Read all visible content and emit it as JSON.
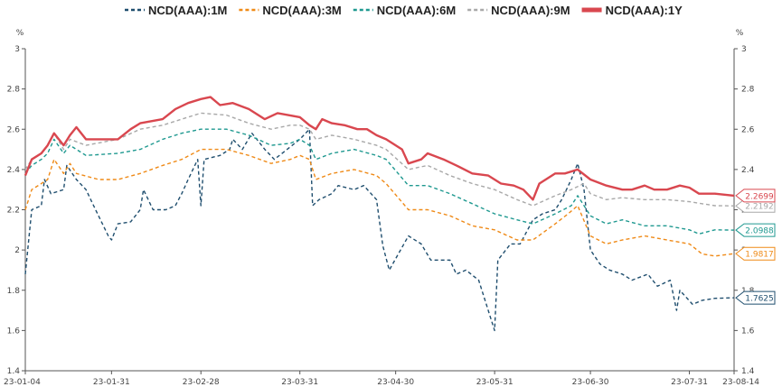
{
  "chart_data": {
    "type": "line",
    "y_unit_left": "%",
    "y_unit_right": "%",
    "ylim": [
      1.4,
      3.0
    ],
    "y_ticks": [
      "1.4",
      "1.6",
      "1.8",
      "2",
      "2.2",
      "2.4",
      "2.6",
      "2.8",
      "3"
    ],
    "x_ticks": [
      "23-01-04",
      "23-01-31",
      "23-02-28",
      "23-03-31",
      "23-04-30",
      "23-05-31",
      "23-06-30",
      "23-07-31",
      "23-08-14"
    ],
    "x_range": [
      "2023-01-04",
      "2023-08-14"
    ],
    "legend_position": "top",
    "grid": false,
    "series": [
      {
        "name": "NCD(AAA):1M",
        "color": "#1f4e6e",
        "dash": "4,3",
        "width": 1.4,
        "last_label": "1.7625",
        "points": [
          [
            "2023-01-04",
            1.88
          ],
          [
            "2023-01-06",
            2.2
          ],
          [
            "2023-01-09",
            2.22
          ],
          [
            "2023-01-10",
            2.35
          ],
          [
            "2023-01-12",
            2.28
          ],
          [
            "2023-01-16",
            2.3
          ],
          [
            "2023-01-17",
            2.42
          ],
          [
            "2023-01-20",
            2.35
          ],
          [
            "2023-01-23",
            2.3
          ],
          [
            "2023-01-26",
            2.2
          ],
          [
            "2023-01-30",
            2.07
          ],
          [
            "2023-01-31",
            2.05
          ],
          [
            "2023-02-02",
            2.13
          ],
          [
            "2023-02-06",
            2.14
          ],
          [
            "2023-02-09",
            2.2
          ],
          [
            "2023-02-10",
            2.3
          ],
          [
            "2023-02-13",
            2.2
          ],
          [
            "2023-02-17",
            2.2
          ],
          [
            "2023-02-20",
            2.22
          ],
          [
            "2023-02-22",
            2.28
          ],
          [
            "2023-02-24",
            2.35
          ],
          [
            "2023-02-27",
            2.45
          ],
          [
            "2023-02-28",
            2.22
          ],
          [
            "2023-03-01",
            2.45
          ],
          [
            "2023-03-06",
            2.47
          ],
          [
            "2023-03-09",
            2.5
          ],
          [
            "2023-03-10",
            2.55
          ],
          [
            "2023-03-13",
            2.5
          ],
          [
            "2023-03-16",
            2.58
          ],
          [
            "2023-03-20",
            2.5
          ],
          [
            "2023-03-23",
            2.45
          ],
          [
            "2023-03-27",
            2.5
          ],
          [
            "2023-03-31",
            2.55
          ],
          [
            "2023-04-03",
            2.6
          ],
          [
            "2023-04-04",
            2.22
          ],
          [
            "2023-04-06",
            2.25
          ],
          [
            "2023-04-10",
            2.28
          ],
          [
            "2023-04-12",
            2.32
          ],
          [
            "2023-04-17",
            2.3
          ],
          [
            "2023-04-20",
            2.32
          ],
          [
            "2023-04-24",
            2.25
          ],
          [
            "2023-04-26",
            2.02
          ],
          [
            "2023-04-28",
            1.9
          ],
          [
            "2023-05-04",
            2.07
          ],
          [
            "2023-05-08",
            2.03
          ],
          [
            "2023-05-11",
            1.95
          ],
          [
            "2023-05-17",
            1.95
          ],
          [
            "2023-05-19",
            1.88
          ],
          [
            "2023-05-22",
            1.9
          ],
          [
            "2023-05-26",
            1.85
          ],
          [
            "2023-05-31",
            1.6
          ],
          [
            "2023-06-01",
            1.95
          ],
          [
            "2023-06-05",
            2.03
          ],
          [
            "2023-06-08",
            2.03
          ],
          [
            "2023-06-12",
            2.15
          ],
          [
            "2023-06-15",
            2.18
          ],
          [
            "2023-06-19",
            2.2
          ],
          [
            "2023-06-21",
            2.25
          ],
          [
            "2023-06-24",
            2.35
          ],
          [
            "2023-06-26",
            2.43
          ],
          [
            "2023-06-28",
            2.3
          ],
          [
            "2023-06-30",
            2.0
          ],
          [
            "2023-07-03",
            1.93
          ],
          [
            "2023-07-06",
            1.9
          ],
          [
            "2023-07-10",
            1.88
          ],
          [
            "2023-07-13",
            1.85
          ],
          [
            "2023-07-18",
            1.88
          ],
          [
            "2023-07-21",
            1.82
          ],
          [
            "2023-07-25",
            1.85
          ],
          [
            "2023-07-27",
            1.7
          ],
          [
            "2023-07-28",
            1.8
          ],
          [
            "2023-08-01",
            1.73
          ],
          [
            "2023-08-04",
            1.75
          ],
          [
            "2023-08-08",
            1.76
          ],
          [
            "2023-08-14",
            1.7625
          ]
        ]
      },
      {
        "name": "NCD(AAA):3M",
        "color": "#ef8a17",
        "dash": "4,3",
        "width": 1.4,
        "last_label": "1.9817",
        "points": [
          [
            "2023-01-04",
            2.2
          ],
          [
            "2023-01-06",
            2.3
          ],
          [
            "2023-01-09",
            2.33
          ],
          [
            "2023-01-11",
            2.35
          ],
          [
            "2023-01-13",
            2.45
          ],
          [
            "2023-01-16",
            2.38
          ],
          [
            "2023-01-18",
            2.43
          ],
          [
            "2023-01-20",
            2.38
          ],
          [
            "2023-01-27",
            2.35
          ],
          [
            "2023-02-02",
            2.35
          ],
          [
            "2023-02-09",
            2.38
          ],
          [
            "2023-02-16",
            2.42
          ],
          [
            "2023-02-22",
            2.45
          ],
          [
            "2023-02-28",
            2.5
          ],
          [
            "2023-03-08",
            2.5
          ],
          [
            "2023-03-15",
            2.47
          ],
          [
            "2023-03-22",
            2.43
          ],
          [
            "2023-03-28",
            2.45
          ],
          [
            "2023-03-31",
            2.47
          ],
          [
            "2023-04-03",
            2.45
          ],
          [
            "2023-04-05",
            2.35
          ],
          [
            "2023-04-10",
            2.38
          ],
          [
            "2023-04-17",
            2.4
          ],
          [
            "2023-04-24",
            2.37
          ],
          [
            "2023-04-27",
            2.33
          ],
          [
            "2023-05-04",
            2.2
          ],
          [
            "2023-05-10",
            2.2
          ],
          [
            "2023-05-17",
            2.17
          ],
          [
            "2023-05-24",
            2.12
          ],
          [
            "2023-05-31",
            2.1
          ],
          [
            "2023-06-07",
            2.05
          ],
          [
            "2023-06-12",
            2.05
          ],
          [
            "2023-06-19",
            2.13
          ],
          [
            "2023-06-23",
            2.18
          ],
          [
            "2023-06-26",
            2.22
          ],
          [
            "2023-06-30",
            2.07
          ],
          [
            "2023-07-05",
            2.03
          ],
          [
            "2023-07-10",
            2.05
          ],
          [
            "2023-07-17",
            2.07
          ],
          [
            "2023-07-24",
            2.05
          ],
          [
            "2023-07-31",
            2.03
          ],
          [
            "2023-08-04",
            1.98
          ],
          [
            "2023-08-08",
            1.97
          ],
          [
            "2023-08-14",
            1.9817
          ]
        ]
      },
      {
        "name": "NCD(AAA):6M",
        "color": "#1f9990",
        "dash": "4,3",
        "width": 1.4,
        "last_label": "2.0988",
        "points": [
          [
            "2023-01-04",
            2.38
          ],
          [
            "2023-01-06",
            2.42
          ],
          [
            "2023-01-09",
            2.45
          ],
          [
            "2023-01-11",
            2.48
          ],
          [
            "2023-01-13",
            2.55
          ],
          [
            "2023-01-16",
            2.48
          ],
          [
            "2023-01-18",
            2.52
          ],
          [
            "2023-01-23",
            2.47
          ],
          [
            "2023-02-02",
            2.48
          ],
          [
            "2023-02-09",
            2.5
          ],
          [
            "2023-02-16",
            2.55
          ],
          [
            "2023-02-22",
            2.58
          ],
          [
            "2023-02-28",
            2.6
          ],
          [
            "2023-03-08",
            2.6
          ],
          [
            "2023-03-15",
            2.57
          ],
          [
            "2023-03-22",
            2.52
          ],
          [
            "2023-03-28",
            2.53
          ],
          [
            "2023-03-31",
            2.55
          ],
          [
            "2023-04-03",
            2.52
          ],
          [
            "2023-04-05",
            2.45
          ],
          [
            "2023-04-10",
            2.48
          ],
          [
            "2023-04-17",
            2.5
          ],
          [
            "2023-04-24",
            2.47
          ],
          [
            "2023-04-27",
            2.45
          ],
          [
            "2023-05-04",
            2.32
          ],
          [
            "2023-05-10",
            2.32
          ],
          [
            "2023-05-17",
            2.28
          ],
          [
            "2023-05-24",
            2.23
          ],
          [
            "2023-05-31",
            2.18
          ],
          [
            "2023-06-07",
            2.15
          ],
          [
            "2023-06-12",
            2.13
          ],
          [
            "2023-06-19",
            2.18
          ],
          [
            "2023-06-24",
            2.22
          ],
          [
            "2023-06-26",
            2.27
          ],
          [
            "2023-06-30",
            2.17
          ],
          [
            "2023-07-05",
            2.13
          ],
          [
            "2023-07-10",
            2.15
          ],
          [
            "2023-07-17",
            2.12
          ],
          [
            "2023-07-24",
            2.12
          ],
          [
            "2023-07-31",
            2.1
          ],
          [
            "2023-08-03",
            2.08
          ],
          [
            "2023-08-08",
            2.1
          ],
          [
            "2023-08-14",
            2.0988
          ]
        ]
      },
      {
        "name": "NCD(AAA):9M",
        "color": "#a8a8a8",
        "dash": "4,3",
        "width": 1.4,
        "last_label": "2.2192",
        "points": [
          [
            "2023-01-04",
            2.4
          ],
          [
            "2023-01-06",
            2.45
          ],
          [
            "2023-01-09",
            2.48
          ],
          [
            "2023-01-11",
            2.52
          ],
          [
            "2023-01-13",
            2.58
          ],
          [
            "2023-01-16",
            2.5
          ],
          [
            "2023-01-18",
            2.55
          ],
          [
            "2023-01-23",
            2.52
          ],
          [
            "2023-02-02",
            2.55
          ],
          [
            "2023-02-09",
            2.6
          ],
          [
            "2023-02-16",
            2.62
          ],
          [
            "2023-02-22",
            2.65
          ],
          [
            "2023-02-28",
            2.68
          ],
          [
            "2023-03-08",
            2.67
          ],
          [
            "2023-03-15",
            2.63
          ],
          [
            "2023-03-22",
            2.6
          ],
          [
            "2023-03-28",
            2.62
          ],
          [
            "2023-03-31",
            2.62
          ],
          [
            "2023-04-03",
            2.6
          ],
          [
            "2023-04-05",
            2.55
          ],
          [
            "2023-04-10",
            2.57
          ],
          [
            "2023-04-17",
            2.55
          ],
          [
            "2023-04-24",
            2.52
          ],
          [
            "2023-04-27",
            2.5
          ],
          [
            "2023-05-04",
            2.4
          ],
          [
            "2023-05-10",
            2.42
          ],
          [
            "2023-05-17",
            2.37
          ],
          [
            "2023-05-24",
            2.33
          ],
          [
            "2023-05-31",
            2.3
          ],
          [
            "2023-06-07",
            2.25
          ],
          [
            "2023-06-12",
            2.22
          ],
          [
            "2023-06-19",
            2.27
          ],
          [
            "2023-06-24",
            2.3
          ],
          [
            "2023-06-28",
            2.33
          ],
          [
            "2023-06-30",
            2.28
          ],
          [
            "2023-07-05",
            2.25
          ],
          [
            "2023-07-10",
            2.26
          ],
          [
            "2023-07-17",
            2.25
          ],
          [
            "2023-07-24",
            2.25
          ],
          [
            "2023-07-31",
            2.24
          ],
          [
            "2023-08-08",
            2.22
          ],
          [
            "2023-08-14",
            2.2192
          ]
        ]
      },
      {
        "name": "NCD(AAA):1Y",
        "color": "#d9474f",
        "dash": "",
        "width": 2.4,
        "last_label": "2.2699",
        "points": [
          [
            "2023-01-04",
            2.37
          ],
          [
            "2023-01-06",
            2.45
          ],
          [
            "2023-01-09",
            2.48
          ],
          [
            "2023-01-11",
            2.52
          ],
          [
            "2023-01-13",
            2.58
          ],
          [
            "2023-01-16",
            2.52
          ],
          [
            "2023-01-18",
            2.57
          ],
          [
            "2023-01-20",
            2.61
          ],
          [
            "2023-01-23",
            2.55
          ],
          [
            "2023-02-02",
            2.55
          ],
          [
            "2023-02-06",
            2.6
          ],
          [
            "2023-02-09",
            2.63
          ],
          [
            "2023-02-16",
            2.65
          ],
          [
            "2023-02-20",
            2.7
          ],
          [
            "2023-02-24",
            2.73
          ],
          [
            "2023-02-28",
            2.75
          ],
          [
            "2023-03-03",
            2.76
          ],
          [
            "2023-03-06",
            2.72
          ],
          [
            "2023-03-10",
            2.73
          ],
          [
            "2023-03-15",
            2.7
          ],
          [
            "2023-03-20",
            2.65
          ],
          [
            "2023-03-24",
            2.68
          ],
          [
            "2023-03-31",
            2.66
          ],
          [
            "2023-04-03",
            2.62
          ],
          [
            "2023-04-05",
            2.6
          ],
          [
            "2023-04-07",
            2.65
          ],
          [
            "2023-04-10",
            2.63
          ],
          [
            "2023-04-14",
            2.62
          ],
          [
            "2023-04-18",
            2.6
          ],
          [
            "2023-04-21",
            2.6
          ],
          [
            "2023-04-24",
            2.57
          ],
          [
            "2023-04-27",
            2.55
          ],
          [
            "2023-05-02",
            2.5
          ],
          [
            "2023-05-04",
            2.43
          ],
          [
            "2023-05-08",
            2.45
          ],
          [
            "2023-05-10",
            2.48
          ],
          [
            "2023-05-15",
            2.45
          ],
          [
            "2023-05-19",
            2.42
          ],
          [
            "2023-05-24",
            2.38
          ],
          [
            "2023-05-29",
            2.37
          ],
          [
            "2023-06-02",
            2.33
          ],
          [
            "2023-06-06",
            2.32
          ],
          [
            "2023-06-09",
            2.3
          ],
          [
            "2023-06-12",
            2.25
          ],
          [
            "2023-06-14",
            2.33
          ],
          [
            "2023-06-19",
            2.38
          ],
          [
            "2023-06-22",
            2.38
          ],
          [
            "2023-06-26",
            2.4
          ],
          [
            "2023-06-30",
            2.35
          ],
          [
            "2023-07-05",
            2.32
          ],
          [
            "2023-07-10",
            2.3
          ],
          [
            "2023-07-13",
            2.3
          ],
          [
            "2023-07-17",
            2.32
          ],
          [
            "2023-07-20",
            2.3
          ],
          [
            "2023-07-24",
            2.3
          ],
          [
            "2023-07-28",
            2.32
          ],
          [
            "2023-07-31",
            2.31
          ],
          [
            "2023-08-03",
            2.28
          ],
          [
            "2023-08-08",
            2.28
          ],
          [
            "2023-08-14",
            2.2699
          ]
        ]
      }
    ]
  }
}
